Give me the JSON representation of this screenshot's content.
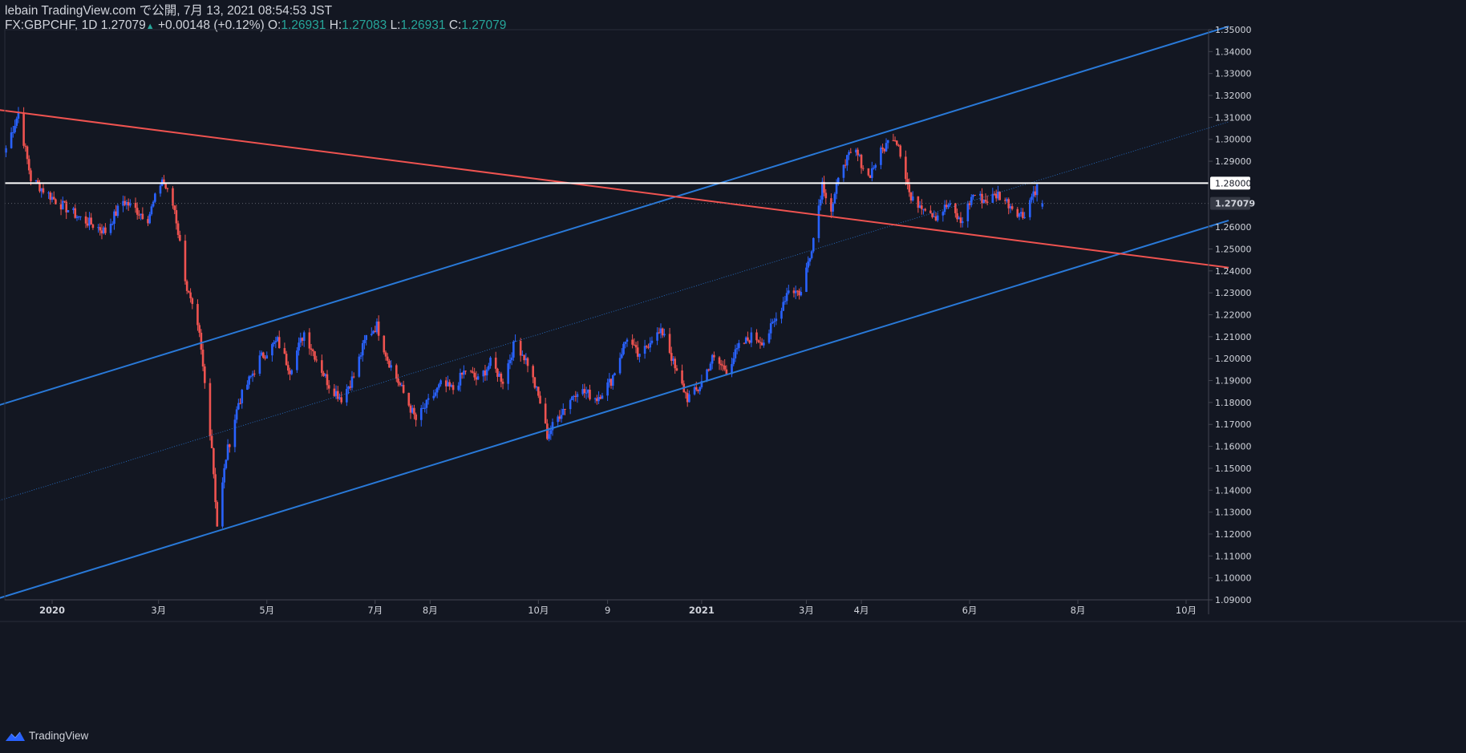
{
  "header": {
    "line1": "lebain TradingView.com で公開, 7月 13, 2021 08:54:53 JST",
    "symbol": "FX:GBPCHF, 1D",
    "last": "1.27079",
    "arrow": "▲",
    "change": "+0.00148 (+0.12%)",
    "o_label": "O:",
    "o_value": "1.26931",
    "h_label": "H:",
    "h_value": "1.27083",
    "l_label": "L:",
    "l_value": "1.26931",
    "c_label": "C:",
    "c_value": "1.27079"
  },
  "footer": {
    "brand": "TradingView",
    "logo_icon": "tradingview-logo-icon"
  },
  "colors": {
    "background": "#131722",
    "up": "#2962ff",
    "down": "#ef5350",
    "channel": "#2979d8",
    "trendline": "#ef5350",
    "level": "#ffffff"
  },
  "chart_data": {
    "type": "candlestick",
    "symbol": "FX:GBPCHF",
    "interval": "1D",
    "ylim": [
      1.09,
      1.35
    ],
    "y_ticks": [
      "1.35000",
      "1.34000",
      "1.33000",
      "1.32000",
      "1.31000",
      "1.30000",
      "1.29000",
      "1.28000",
      "1.27079",
      "1.26000",
      "1.25000",
      "1.24000",
      "1.23000",
      "1.22000",
      "1.21000",
      "1.20000",
      "1.19000",
      "1.18000",
      "1.17000",
      "1.16000",
      "1.15000",
      "1.14000",
      "1.13000",
      "1.12000",
      "1.11000",
      "1.10000",
      "1.09000"
    ],
    "x_ticks": [
      {
        "label": "2020",
        "date": "2020-01-01",
        "bold": true
      },
      {
        "label": "3月",
        "date": "2020-03-01"
      },
      {
        "label": "5月",
        "date": "2020-05-01"
      },
      {
        "label": "7月",
        "date": "2020-07-01"
      },
      {
        "label": "8月",
        "date": "2020-08-01"
      },
      {
        "label": "10月",
        "date": "2020-10-01"
      },
      {
        "label": "9",
        "date": "2020-11-09"
      },
      {
        "label": "2021",
        "date": "2021-01-01",
        "bold": true
      },
      {
        "label": "3月",
        "date": "2021-03-01"
      },
      {
        "label": "4月",
        "date": "2021-04-01"
      },
      {
        "label": "6月",
        "date": "2021-06-01"
      },
      {
        "label": "8月",
        "date": "2021-08-01"
      },
      {
        "label": "10月",
        "date": "2021-10-01"
      }
    ],
    "horizontal_level": {
      "value": 1.28,
      "label": "1.28000"
    },
    "last_price": {
      "value": 1.27079,
      "label": "1.27079"
    },
    "anchors": [
      [
        "2019-12-06",
        1.296
      ],
      [
        "2019-12-13",
        1.312
      ],
      [
        "2019-12-20",
        1.282
      ],
      [
        "2020-01-03",
        1.272
      ],
      [
        "2020-01-17",
        1.264
      ],
      [
        "2020-01-31",
        1.258
      ],
      [
        "2020-02-10",
        1.272
      ],
      [
        "2020-02-24",
        1.264
      ],
      [
        "2020-03-03",
        1.282
      ],
      [
        "2020-03-10",
        1.268
      ],
      [
        "2020-03-17",
        1.232
      ],
      [
        "2020-03-24",
        1.21
      ],
      [
        "2020-03-31",
        1.16
      ],
      [
        "2020-04-03",
        1.124
      ],
      [
        "2020-04-08",
        1.155
      ],
      [
        "2020-04-15",
        1.18
      ],
      [
        "2020-04-27",
        1.2
      ],
      [
        "2020-05-07",
        1.208
      ],
      [
        "2020-05-14",
        1.195
      ],
      [
        "2020-05-22",
        1.212
      ],
      [
        "2020-05-29",
        1.2
      ],
      [
        "2020-06-05",
        1.188
      ],
      [
        "2020-06-12",
        1.182
      ],
      [
        "2020-06-19",
        1.192
      ],
      [
        "2020-06-26",
        1.21
      ],
      [
        "2020-07-02",
        1.215
      ],
      [
        "2020-07-08",
        1.2
      ],
      [
        "2020-07-16",
        1.186
      ],
      [
        "2020-07-24",
        1.172
      ],
      [
        "2020-07-31",
        1.18
      ],
      [
        "2020-08-07",
        1.188
      ],
      [
        "2020-08-14",
        1.186
      ],
      [
        "2020-08-21",
        1.195
      ],
      [
        "2020-08-28",
        1.19
      ],
      [
        "2020-09-04",
        1.198
      ],
      [
        "2020-09-11",
        1.19
      ],
      [
        "2020-09-18",
        1.208
      ],
      [
        "2020-09-25",
        1.198
      ],
      [
        "2020-10-02",
        1.18
      ],
      [
        "2020-10-06",
        1.165
      ],
      [
        "2020-10-14",
        1.176
      ],
      [
        "2020-10-23",
        1.186
      ],
      [
        "2020-11-03",
        1.182
      ],
      [
        "2020-11-11",
        1.19
      ],
      [
        "2020-11-20",
        1.21
      ],
      [
        "2020-11-27",
        1.2
      ],
      [
        "2020-12-04",
        1.21
      ],
      [
        "2020-12-11",
        1.212
      ],
      [
        "2020-12-17",
        1.195
      ],
      [
        "2020-12-24",
        1.182
      ],
      [
        "2020-12-30",
        1.186
      ],
      [
        "2021-01-07",
        1.2
      ],
      [
        "2021-01-15",
        1.195
      ],
      [
        "2021-01-22",
        1.205
      ],
      [
        "2021-01-29",
        1.21
      ],
      [
        "2021-02-05",
        1.208
      ],
      [
        "2021-02-12",
        1.218
      ],
      [
        "2021-02-19",
        1.232
      ],
      [
        "2021-02-26",
        1.23
      ],
      [
        "2021-03-05",
        1.255
      ],
      [
        "2021-03-10",
        1.28
      ],
      [
        "2021-03-15",
        1.268
      ],
      [
        "2021-03-22",
        1.29
      ],
      [
        "2021-03-29",
        1.294
      ],
      [
        "2021-04-05",
        1.283
      ],
      [
        "2021-04-12",
        1.294
      ],
      [
        "2021-04-19",
        1.302
      ],
      [
        "2021-04-22",
        1.298
      ],
      [
        "2021-04-29",
        1.272
      ],
      [
        "2021-05-06",
        1.27
      ],
      [
        "2021-05-13",
        1.265
      ],
      [
        "2021-05-20",
        1.27
      ],
      [
        "2021-05-27",
        1.262
      ],
      [
        "2021-06-03",
        1.275
      ],
      [
        "2021-06-10",
        1.272
      ],
      [
        "2021-06-17",
        1.275
      ],
      [
        "2021-06-24",
        1.27
      ],
      [
        "2021-07-01",
        1.265
      ],
      [
        "2021-07-07",
        1.276
      ],
      [
        "2021-07-09",
        1.278
      ],
      [
        "2021-07-12",
        1.2693
      ]
    ],
    "drawings": [
      {
        "name": "channel-upper-line",
        "color": "#2979d8",
        "from": [
          "2019-12-01",
          1.1785
        ],
        "to": [
          "2021-10-25",
          1.3515
        ]
      },
      {
        "name": "channel-mid-line",
        "color": "#2979d8",
        "dotted": true,
        "from": [
          "2019-12-01",
          1.135
        ],
        "to": [
          "2021-10-25",
          1.308
        ]
      },
      {
        "name": "channel-lower-line",
        "color": "#2979d8",
        "from": [
          "2019-12-01",
          1.0905
        ],
        "to": [
          "2021-10-25",
          1.263
        ]
      },
      {
        "name": "red-trendline",
        "color": "#ef5350",
        "from": [
          "2019-12-01",
          1.3135
        ],
        "to": [
          "2021-10-25",
          1.2415
        ]
      }
    ]
  }
}
